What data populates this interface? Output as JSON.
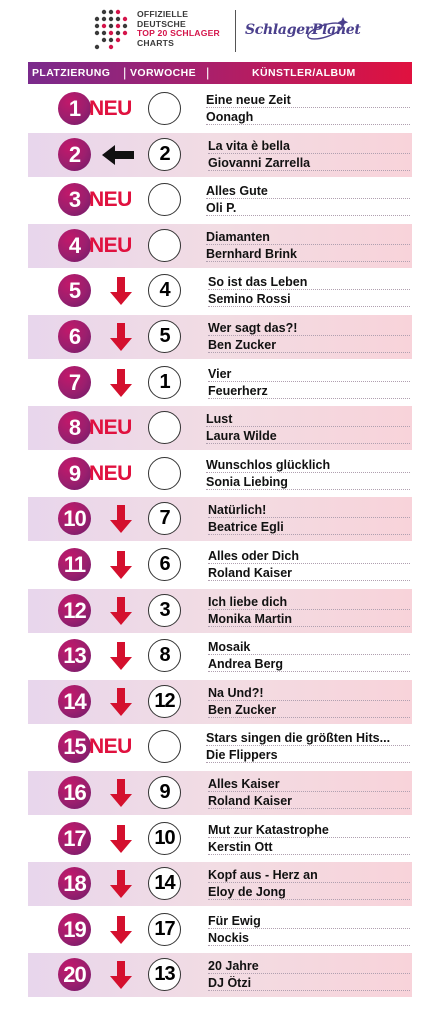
{
  "logo": {
    "line1": "OFFIZIELLE",
    "line2": "DEUTSCHE",
    "line3": "TOP 20 SCHLAGER",
    "line4": "CHARTS",
    "brand": "SchlagerPlanet"
  },
  "header": {
    "place": "PLATZIERUNG",
    "prev": "VORWOCHE",
    "artist": "KÜNSTLER/ALBUM",
    "separator": "|"
  },
  "colors": {
    "rank_circle": "#9a1f6e",
    "new_text": "#e0113f",
    "arrow": "#d4102e",
    "header_start": "#7a2a8c",
    "header_end": "#e0113f"
  },
  "entries": [
    {
      "rank": "1",
      "status": "new",
      "new_label": "NEU",
      "prev": "",
      "title": "Eine neue Zeit",
      "artist": "Oonagh"
    },
    {
      "rank": "2",
      "status": "same",
      "new_label": "",
      "prev": "2",
      "title": "La vita è bella",
      "artist": "Giovanni Zarrella"
    },
    {
      "rank": "3",
      "status": "new",
      "new_label": "NEU",
      "prev": "",
      "title": "Alles Gute",
      "artist": "Oli P."
    },
    {
      "rank": "4",
      "status": "new",
      "new_label": "NEU",
      "prev": "",
      "title": "Diamanten",
      "artist": "Bernhard Brink"
    },
    {
      "rank": "5",
      "status": "down",
      "new_label": "",
      "prev": "4",
      "title": "So ist das Leben",
      "artist": "Semino Rossi"
    },
    {
      "rank": "6",
      "status": "down",
      "new_label": "",
      "prev": "5",
      "title": "Wer sagt das?!",
      "artist": "Ben Zucker"
    },
    {
      "rank": "7",
      "status": "down",
      "new_label": "",
      "prev": "1",
      "title": "Vier",
      "artist": "Feuerherz"
    },
    {
      "rank": "8",
      "status": "new",
      "new_label": "NEU",
      "prev": "",
      "title": "Lust",
      "artist": "Laura Wilde"
    },
    {
      "rank": "9",
      "status": "new",
      "new_label": "NEU",
      "prev": "",
      "title": "Wunschlos glücklich",
      "artist": "Sonia Liebing"
    },
    {
      "rank": "10",
      "status": "down",
      "new_label": "",
      "prev": "7",
      "title": "Natürlich!",
      "artist": "Beatrice Egli"
    },
    {
      "rank": "11",
      "status": "down",
      "new_label": "",
      "prev": "6",
      "title": "Alles oder Dich",
      "artist": "Roland Kaiser"
    },
    {
      "rank": "12",
      "status": "down",
      "new_label": "",
      "prev": "3",
      "title": "Ich liebe dich",
      "artist": "Monika Martin"
    },
    {
      "rank": "13",
      "status": "down",
      "new_label": "",
      "prev": "8",
      "title": "Mosaik",
      "artist": "Andrea Berg"
    },
    {
      "rank": "14",
      "status": "down",
      "new_label": "",
      "prev": "12",
      "title": "Na Und?!",
      "artist": "Ben Zucker"
    },
    {
      "rank": "15",
      "status": "new",
      "new_label": "NEU",
      "prev": "",
      "title": "Stars singen die größten Hits...",
      "artist": "Die Flippers"
    },
    {
      "rank": "16",
      "status": "down",
      "new_label": "",
      "prev": "9",
      "title": "Alles Kaiser",
      "artist": "Roland Kaiser"
    },
    {
      "rank": "17",
      "status": "down",
      "new_label": "",
      "prev": "10",
      "title": "Mut zur Katastrophe",
      "artist": "Kerstin Ott"
    },
    {
      "rank": "18",
      "status": "down",
      "new_label": "",
      "prev": "14",
      "title": "Kopf aus - Herz an",
      "artist": "Eloy de Jong"
    },
    {
      "rank": "19",
      "status": "down",
      "new_label": "",
      "prev": "17",
      "title": "Für Ewig",
      "artist": "Nockis"
    },
    {
      "rank": "20",
      "status": "down",
      "new_label": "",
      "prev": "13",
      "title": "20 Jahre",
      "artist": "DJ Ötzi"
    }
  ]
}
